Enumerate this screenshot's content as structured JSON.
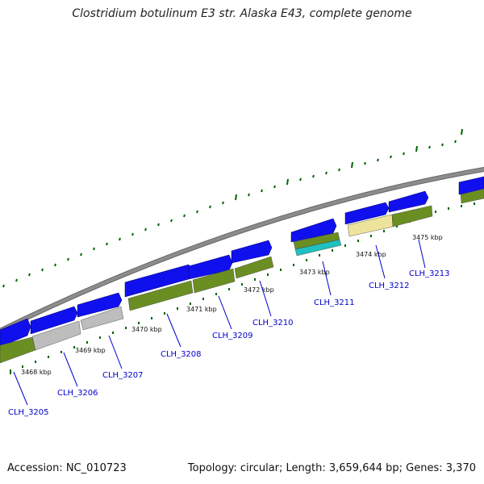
{
  "title": "Clostridium botulinum E3 str. Alaska E43, complete genome",
  "footer": {
    "accession": "Accession: NC_010723",
    "stats": "Topology: circular; Length: 3,659,644 bp; Genes: 3,370"
  },
  "colors": {
    "backbone": "#8c8c8c",
    "forward_gene": "#1010ee",
    "cds_green": "#6b8e23",
    "pseudo_gray": "#bdbdbd",
    "rna_cyan": "#20c0c0",
    "highlight_yellow": "#eee39a",
    "tick_green": "#006400",
    "label_blue": "#0000cc"
  },
  "scale_labels": [
    "3468 kbp",
    "3469 kbp",
    "3470 kbp",
    "3471 kbp",
    "3472 kbp",
    "3473 kbp",
    "3474 kbp",
    "3475 kbp"
  ],
  "genes": [
    {
      "name": "CLH_3205"
    },
    {
      "name": "CLH_3206"
    },
    {
      "name": "CLH_3207"
    },
    {
      "name": "CLH_3208"
    },
    {
      "name": "CLH_3209"
    },
    {
      "name": "CLH_3210"
    },
    {
      "name": "CLH_3211"
    },
    {
      "name": "CLH_3212"
    },
    {
      "name": "CLH_3213"
    }
  ]
}
